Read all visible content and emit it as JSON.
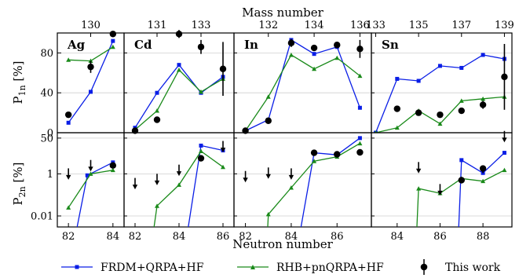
{
  "figure": {
    "top_axis_label": "Mass number",
    "bottom_axis_label": "Neutron number",
    "y_label_top_main": "P",
    "y_label_top_sub": "1n",
    "y_label_top_unit": " [%]",
    "y_label_bottom_main": "P",
    "y_label_bottom_sub": "2n",
    "y_label_bottom_unit": " [%]"
  },
  "legend": {
    "frdm": "FRDM+QRPA+HF",
    "rhb": "RHB+pnQRPA+HF",
    "work": "This work"
  },
  "colors": {
    "frdm": "#0a1ee6",
    "rhb": "#1a8a1a",
    "work": "#000000"
  },
  "chart_data": [
    {
      "type": "line",
      "element": "Ag",
      "panel": "P1n",
      "x": [
        82,
        83,
        84
      ],
      "mass_ticks": [
        130
      ],
      "ylim": [
        0,
        100
      ],
      "yticks": [
        0,
        40,
        80
      ],
      "series": [
        {
          "name": "FRDM+QRPA+HF",
          "values": [
            10,
            41,
            92
          ]
        },
        {
          "name": "RHB+pnQRPA+HF",
          "values": [
            73,
            72,
            86
          ]
        }
      ],
      "measured": [
        {
          "x": 82,
          "y": 18
        },
        {
          "x": 83,
          "y": 66,
          "err": 6
        },
        {
          "x": 84,
          "y": 99,
          "err": 2
        }
      ]
    },
    {
      "type": "line",
      "element": "Cd",
      "panel": "P1n",
      "x": [
        82,
        83,
        84,
        85,
        86
      ],
      "mass_ticks": [
        131,
        133
      ],
      "ylim": [
        0,
        100
      ],
      "yticks": [
        0,
        40,
        80
      ],
      "series": [
        {
          "name": "FRDM+QRPA+HF",
          "values": [
            5,
            40,
            68,
            40,
            56
          ]
        },
        {
          "name": "RHB+pnQRPA+HF",
          "values": [
            3,
            22,
            63,
            41,
            54
          ]
        }
      ],
      "measured": [
        {
          "x": 82,
          "y": 2
        },
        {
          "x": 83,
          "y": 13
        },
        {
          "x": 84,
          "y": 99,
          "err": 4
        },
        {
          "x": 85,
          "y": 86,
          "err": 7
        },
        {
          "x": 86,
          "y": 64,
          "err": 27
        }
      ]
    },
    {
      "type": "line",
      "element": "In",
      "panel": "P1n",
      "x": [
        82,
        83,
        84,
        85,
        86,
        87
      ],
      "mass_ticks": [
        132,
        134,
        136
      ],
      "ylim": [
        0,
        100
      ],
      "yticks": [
        0,
        40,
        80
      ],
      "series": [
        {
          "name": "FRDM+QRPA+HF",
          "values": [
            2,
            13,
            93,
            79,
            86,
            25
          ]
        },
        {
          "name": "RHB+pnQRPA+HF",
          "values": [
            2,
            36,
            78,
            64,
            75,
            57
          ]
        }
      ],
      "measured": [
        {
          "x": 82,
          "y": 2
        },
        {
          "x": 83,
          "y": 12
        },
        {
          "x": 84,
          "y": 90,
          "err": 4
        },
        {
          "x": 85,
          "y": 85,
          "err": 3
        },
        {
          "x": 86,
          "y": 88,
          "err": 3
        },
        {
          "x": 87,
          "y": 84,
          "err": 9
        }
      ]
    },
    {
      "type": "line",
      "element": "Sn",
      "panel": "P1n",
      "x": [
        83,
        84,
        85,
        86,
        87,
        88,
        89
      ],
      "mass_ticks": [
        133,
        135,
        137,
        139
      ],
      "ylim": [
        0,
        100
      ],
      "yticks": [
        0,
        40,
        80
      ],
      "series": [
        {
          "name": "FRDM+QRPA+HF",
          "values": [
            0,
            54,
            52,
            67,
            65,
            78,
            74
          ]
        },
        {
          "name": "RHB+pnQRPA+HF",
          "values": [
            0,
            5,
            22,
            9,
            32,
            34,
            36
          ]
        }
      ],
      "measured": [
        {
          "x": 84,
          "y": 24
        },
        {
          "x": 85,
          "y": 20
        },
        {
          "x": 86,
          "y": 18
        },
        {
          "x": 87,
          "y": 22
        },
        {
          "x": 88,
          "y": 28,
          "err": 4
        },
        {
          "x": 89,
          "y": 56,
          "err": 33
        }
      ]
    },
    {
      "type": "line",
      "element": "Ag",
      "panel": "P2n",
      "yscale": "log",
      "x": [
        82,
        83,
        84
      ],
      "ylim": [
        0.003,
        90
      ],
      "yticks": [
        0.01,
        1,
        50
      ],
      "series": [
        {
          "name": "FRDM+QRPA+HF",
          "points": [
            [
              82.3,
              0.001
            ],
            [
              82.85,
              0.85
            ],
            [
              84,
              3.5
            ]
          ]
        },
        {
          "name": "RHB+pnQRPA+HF",
          "values": [
            0.025,
            1.0,
            1.5
          ]
        }
      ],
      "measured": [
        {
          "x": 84,
          "y": 2.5,
          "err": 0.3
        }
      ],
      "upper_limits": [
        {
          "x": 82,
          "y": 1.0
        },
        {
          "x": 83,
          "y": 2.5
        }
      ]
    },
    {
      "type": "line",
      "element": "Cd",
      "panel": "P2n",
      "yscale": "log",
      "x": [
        82,
        83,
        84,
        85,
        86
      ],
      "ylim": [
        0.003,
        90
      ],
      "yticks": [
        0.01,
        1,
        50
      ],
      "series": [
        {
          "name": "FRDM+QRPA+HF",
          "points": [
            [
              84.35,
              0.001
            ],
            [
              85,
              22
            ],
            [
              86,
              13
            ]
          ]
        },
        {
          "name": "RHB+pnQRPA+HF",
          "points": [
            [
              82.8,
              0.001
            ],
            [
              83,
              0.03
            ],
            [
              84,
              0.3
            ],
            [
              85,
              12
            ],
            [
              86,
              2.1
            ]
          ]
        }
      ],
      "measured": [
        {
          "x": 85,
          "y": 5.5,
          "err": 0.3
        }
      ],
      "upper_limits": [
        {
          "x": 82,
          "y": 0.35
        },
        {
          "x": 83,
          "y": 0.55
        },
        {
          "x": 84,
          "y": 1.5
        },
        {
          "x": 86,
          "y": 20
        }
      ]
    },
    {
      "type": "line",
      "element": "In",
      "panel": "P2n",
      "yscale": "log",
      "x": [
        82,
        83,
        84,
        85,
        86,
        87
      ],
      "ylim": [
        0.003,
        90
      ],
      "yticks": [
        0.01,
        1,
        50
      ],
      "series": [
        {
          "name": "FRDM+QRPA+HF",
          "points": [
            [
              84.35,
              0.001
            ],
            [
              85,
              10
            ],
            [
              86,
              8
            ],
            [
              87,
              50
            ]
          ]
        },
        {
          "name": "RHB+pnQRPA+HF",
          "points": [
            [
              82.95,
              0.001
            ],
            [
              83,
              0.012
            ],
            [
              84,
              0.22
            ],
            [
              85,
              4
            ],
            [
              86,
              6.5
            ],
            [
              87,
              28
            ]
          ]
        }
      ],
      "measured": [
        {
          "x": 85,
          "y": 10,
          "err": 0.5
        },
        {
          "x": 86,
          "y": 8.5,
          "err": 0.5
        },
        {
          "x": 87,
          "y": 10.5,
          "err": 0.6
        }
      ],
      "upper_limits": [
        {
          "x": 82,
          "y": 0.75
        },
        {
          "x": 83,
          "y": 1.1
        },
        {
          "x": 84,
          "y": 1.0
        }
      ]
    },
    {
      "type": "line",
      "element": "Sn",
      "panel": "P2n",
      "yscale": "log",
      "x": [
        83,
        84,
        85,
        86,
        87,
        88,
        89
      ],
      "ylim": [
        0.003,
        90
      ],
      "yticks": [
        0.01,
        1,
        50
      ],
      "series": [
        {
          "name": "FRDM+QRPA+HF",
          "points": [
            [
              86.85,
              0.001
            ],
            [
              87,
              4.5
            ],
            [
              88,
              1.1
            ],
            [
              89,
              10
            ]
          ]
        },
        {
          "name": "RHB+pnQRPA+HF",
          "points": [
            [
              84.9,
              0.001
            ],
            [
              85,
              0.2
            ],
            [
              86,
              0.12
            ],
            [
              87,
              0.6
            ],
            [
              88,
              0.45
            ],
            [
              89,
              1.5
            ]
          ]
        }
      ],
      "measured": [
        {
          "x": 87,
          "y": 0.5,
          "err": 0.15
        },
        {
          "x": 88,
          "y": 1.8,
          "err": 0.7
        }
      ],
      "upper_limits": [
        {
          "x": 85,
          "y": 2.0
        },
        {
          "x": 86,
          "y": 0.18
        },
        {
          "x": 89,
          "y": 60
        }
      ]
    }
  ]
}
